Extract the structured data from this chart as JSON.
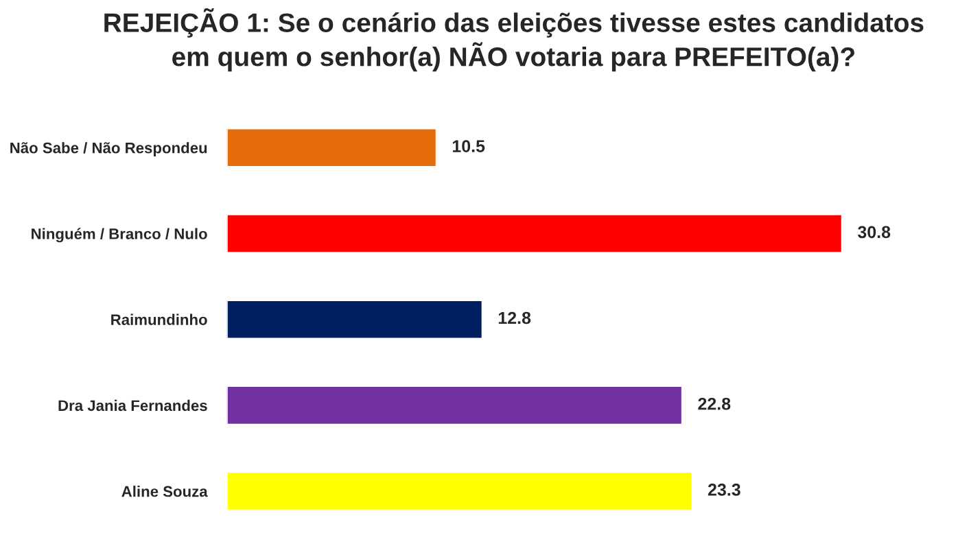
{
  "chart_data": {
    "type": "bar",
    "orientation": "horizontal",
    "title": "REJEIÇÃO 1: Se o cenário das eleições tivesse estes candidatos\nem quem o senhor(a) NÃO votaria para PREFEITO(a)?",
    "categories": [
      "Não Sabe / Não Respondeu",
      "Ninguém / Branco / Nulo",
      "Raimundinho",
      "Dra Jania Fernandes",
      "Aline Souza"
    ],
    "values": [
      10.5,
      30.8,
      12.8,
      22.8,
      23.3
    ],
    "colors": [
      "#e46c0a",
      "#ff0000",
      "#002060",
      "#7030a0",
      "#ffff00"
    ],
    "tick_labels": "y",
    "data_labels": true,
    "grid": false,
    "legend": false
  }
}
